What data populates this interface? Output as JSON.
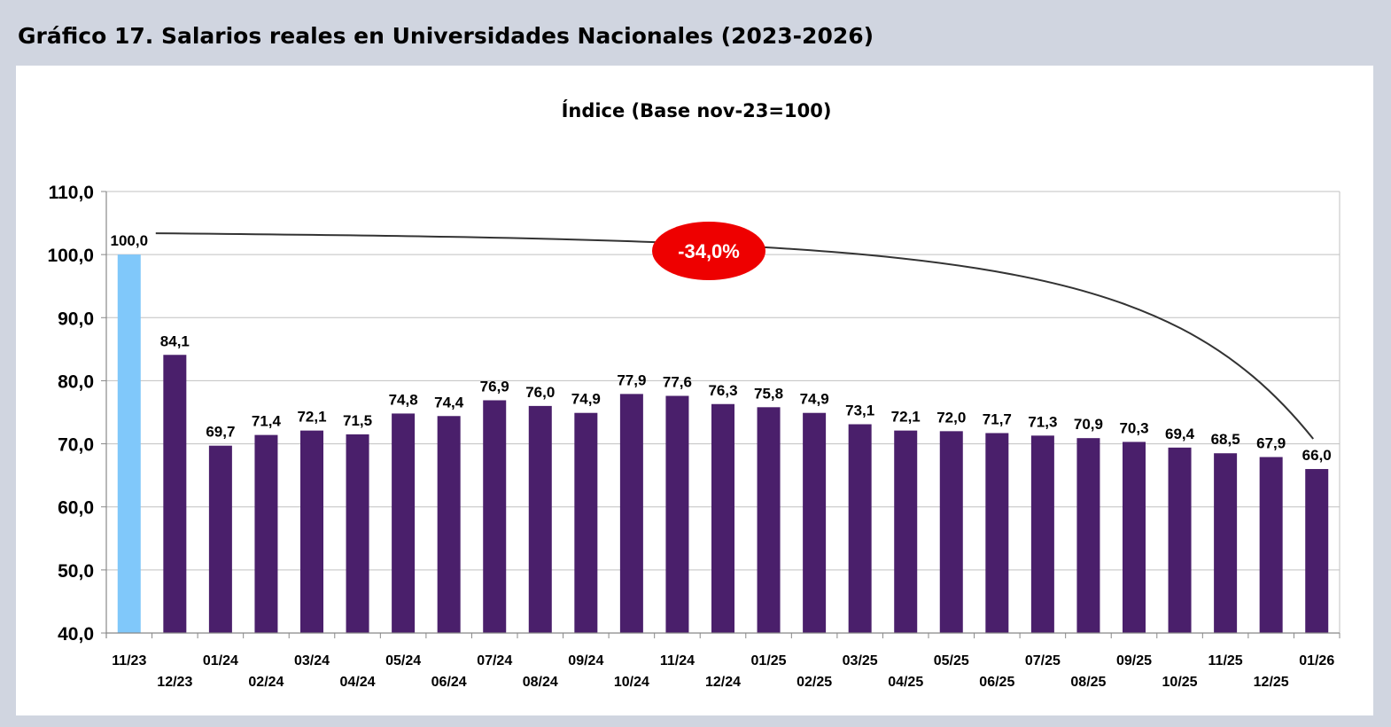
{
  "header": {
    "title": "Gráfico 17. Salarios reales en Universidades Nacionales (2023-2026)"
  },
  "chart_data": {
    "type": "bar",
    "title": "Índice (Base nov-23=100)",
    "xlabel": "",
    "ylabel": "",
    "ylim": [
      40,
      110
    ],
    "yticks": [
      40,
      50,
      60,
      70,
      80,
      90,
      100,
      110
    ],
    "ytick_labels": [
      "40,0",
      "50,0",
      "60,0",
      "70,0",
      "80,0",
      "90,0",
      "100,0",
      "110,0"
    ],
    "grid": true,
    "legend": "none",
    "categories": [
      "11/23",
      "12/23",
      "01/24",
      "02/24",
      "03/24",
      "04/24",
      "05/24",
      "06/24",
      "07/24",
      "08/24",
      "09/24",
      "10/24",
      "11/24",
      "12/24",
      "01/25",
      "02/25",
      "03/25",
      "04/25",
      "05/25",
      "06/25",
      "07/25",
      "08/25",
      "09/25",
      "10/25",
      "11/25",
      "12/25",
      "01/26"
    ],
    "values": [
      100.0,
      84.1,
      69.7,
      71.4,
      72.1,
      71.5,
      74.8,
      74.4,
      76.9,
      76.0,
      74.9,
      77.9,
      77.6,
      76.3,
      75.8,
      74.9,
      73.1,
      72.1,
      72.0,
      71.7,
      71.3,
      70.9,
      70.3,
      69.4,
      68.5,
      67.9,
      66.0
    ],
    "value_labels": [
      "100,0",
      "84,1",
      "69,7",
      "71,4",
      "72,1",
      "71,5",
      "74,8",
      "74,4",
      "76,9",
      "76,0",
      "74,9",
      "77,9",
      "77,6",
      "76,3",
      "75,8",
      "74,9",
      "73,1",
      "72,1",
      "72,0",
      "71,7",
      "71,3",
      "70,9",
      "70,3",
      "69,4",
      "68,5",
      "67,9",
      "66,0"
    ],
    "colors": {
      "base_bar": "#80c8fa",
      "bars": "#4a1f6b",
      "gridline": "#c0c0c0",
      "axis": "#888888",
      "callout": "#ee0000",
      "curve": "#333333"
    },
    "annotations": [
      {
        "text": "-34,0%",
        "from_category": "11/23",
        "to_category": "01/26",
        "shape": "ellipse"
      }
    ]
  }
}
